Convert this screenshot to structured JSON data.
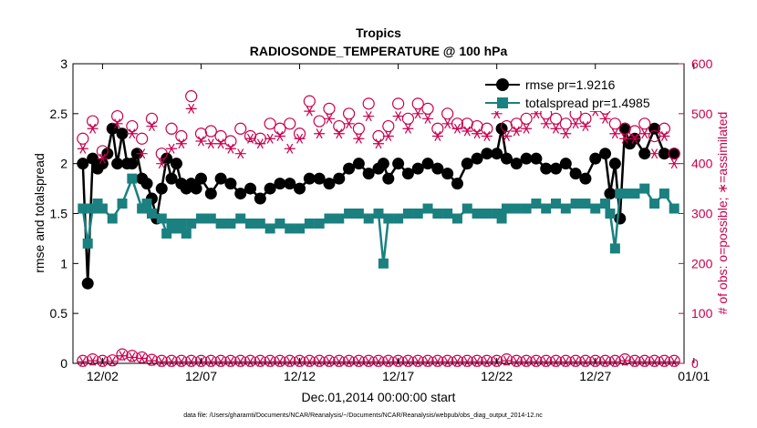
{
  "chart_data": {
    "type": "line",
    "title": "Tropics",
    "subtitle": "RADIOSONDE_TEMPERATURE @ 100 hPa",
    "xlabel": "Dec.01,2014 00:00:00 start",
    "ylabel": "rmse and totalspread",
    "y2label": "# of obs: o=possible; ∗=assimilated",
    "footnote": "data file: /Users/gharamti/Documents/NCAR/Reanalysis/~/Documents/NCAR/Reanalysis/webpub/obs_diag_output_2014-12.nc",
    "xlim": [
      0.5,
      31.5
    ],
    "ylim": [
      0,
      3
    ],
    "y2lim": [
      0,
      600
    ],
    "x_ticks": [
      {
        "value": 2,
        "label": "12/02"
      },
      {
        "value": 7,
        "label": "12/07"
      },
      {
        "value": 12,
        "label": "12/12"
      },
      {
        "value": 17,
        "label": "12/17"
      },
      {
        "value": 22,
        "label": "12/22"
      },
      {
        "value": 27,
        "label": "12/27"
      },
      {
        "value": 32,
        "label": "01/01"
      }
    ],
    "y_ticks": [
      {
        "value": 0,
        "label": "0"
      },
      {
        "value": 0.5,
        "label": "0.5"
      },
      {
        "value": 1,
        "label": "1"
      },
      {
        "value": 1.5,
        "label": "1.5"
      },
      {
        "value": 2,
        "label": "2"
      },
      {
        "value": 2.5,
        "label": "2.5"
      },
      {
        "value": 3,
        "label": "3"
      }
    ],
    "y2_ticks": [
      {
        "value": 0,
        "label": "0"
      },
      {
        "value": 100,
        "label": "100"
      },
      {
        "value": 200,
        "label": "200"
      },
      {
        "value": 300,
        "label": "300"
      },
      {
        "value": 400,
        "label": "400"
      },
      {
        "value": 500,
        "label": "500"
      },
      {
        "value": 600,
        "label": "600"
      }
    ],
    "legend_position": "top-right",
    "series": [
      {
        "name": "rmse",
        "legend_label": "rmse pr=1.9216",
        "color": "#000000",
        "marker": "circle",
        "axis": "left",
        "x": [
          1.0,
          1.25,
          1.5,
          1.75,
          2.0,
          2.25,
          2.5,
          2.75,
          3.0,
          3.25,
          3.5,
          3.75,
          4.0,
          4.25,
          4.5,
          4.75,
          5.0,
          5.25,
          5.5,
          5.75,
          6.0,
          6.25,
          6.5,
          6.75,
          7.0,
          7.5,
          8.0,
          8.5,
          9.0,
          9.5,
          10.0,
          10.5,
          11.0,
          11.5,
          12.0,
          12.5,
          13.0,
          13.5,
          14.0,
          14.5,
          15.0,
          15.5,
          16.0,
          16.25,
          16.5,
          17.0,
          17.5,
          18.0,
          18.5,
          19.0,
          19.5,
          20.0,
          20.5,
          21.0,
          21.5,
          22.0,
          22.25,
          22.5,
          23.0,
          23.5,
          24.0,
          24.5,
          25.0,
          25.5,
          26.0,
          26.5,
          27.0,
          27.5,
          27.75,
          28.0,
          28.25,
          28.5,
          28.75,
          29.0,
          29.5,
          30.0,
          30.5,
          31.0
        ],
        "y": [
          2.0,
          0.8,
          2.05,
          1.95,
          2.0,
          2.1,
          2.35,
          2.0,
          2.3,
          2.0,
          2.0,
          2.1,
          1.85,
          1.8,
          1.65,
          1.45,
          1.75,
          2.05,
          1.85,
          2.0,
          1.8,
          1.75,
          1.8,
          1.75,
          1.85,
          1.7,
          1.85,
          1.8,
          1.7,
          1.75,
          1.65,
          1.75,
          1.8,
          1.8,
          1.75,
          1.85,
          1.85,
          1.8,
          1.85,
          1.95,
          2.0,
          1.9,
          1.95,
          2.0,
          1.85,
          2.0,
          1.9,
          1.95,
          2.0,
          1.95,
          1.9,
          1.8,
          2.0,
          2.05,
          2.1,
          2.1,
          2.35,
          2.05,
          2.0,
          2.05,
          2.05,
          1.95,
          1.95,
          2.0,
          1.9,
          1.85,
          2.05,
          2.1,
          1.7,
          2.0,
          1.45,
          2.35,
          2.2,
          2.25,
          2.1,
          2.35,
          2.1,
          2.1
        ]
      },
      {
        "name": "totalspread",
        "legend_label": "totalspread pr=1.4985",
        "color": "#1a8080",
        "marker": "square",
        "axis": "left",
        "x": [
          1.0,
          1.25,
          1.5,
          1.75,
          2.0,
          2.5,
          3.0,
          3.5,
          4.0,
          4.25,
          4.5,
          5.0,
          5.25,
          5.5,
          5.75,
          6.0,
          6.25,
          6.5,
          7.0,
          7.5,
          8.0,
          8.5,
          9.0,
          9.5,
          10.0,
          10.5,
          11.0,
          11.5,
          12.0,
          12.5,
          13.0,
          13.5,
          14.0,
          14.5,
          15.0,
          15.5,
          16.0,
          16.25,
          16.5,
          17.0,
          17.5,
          18.0,
          18.5,
          19.0,
          19.5,
          20.0,
          20.5,
          21.0,
          21.5,
          22.0,
          22.25,
          22.5,
          23.0,
          23.5,
          24.0,
          24.5,
          25.0,
          25.5,
          26.0,
          26.5,
          27.0,
          27.5,
          27.75,
          28.0,
          28.25,
          28.5,
          29.0,
          29.5,
          30.0,
          30.5,
          31.0
        ],
        "y": [
          1.55,
          1.2,
          1.55,
          1.6,
          1.55,
          1.45,
          1.6,
          1.85,
          1.55,
          1.6,
          1.5,
          1.45,
          1.3,
          1.4,
          1.35,
          1.4,
          1.3,
          1.4,
          1.45,
          1.45,
          1.4,
          1.4,
          1.45,
          1.4,
          1.4,
          1.35,
          1.4,
          1.35,
          1.35,
          1.4,
          1.4,
          1.45,
          1.45,
          1.5,
          1.5,
          1.45,
          1.5,
          1.0,
          1.45,
          1.45,
          1.5,
          1.5,
          1.55,
          1.5,
          1.5,
          1.45,
          1.55,
          1.5,
          1.5,
          1.5,
          1.45,
          1.55,
          1.55,
          1.55,
          1.6,
          1.55,
          1.6,
          1.55,
          1.6,
          1.6,
          1.55,
          1.6,
          1.5,
          1.15,
          1.7,
          1.7,
          1.7,
          1.75,
          1.6,
          1.7,
          1.55
        ]
      },
      {
        "name": "obs possible (top)",
        "color": "#c8004f",
        "marker": "open-circle",
        "axis": "right",
        "x": [
          1.0,
          1.5,
          2.0,
          2.75,
          3.5,
          4.0,
          4.5,
          5.0,
          5.5,
          6.0,
          6.5,
          7.0,
          7.5,
          8.0,
          8.5,
          9.0,
          9.5,
          10.0,
          10.5,
          11.0,
          11.5,
          12.0,
          12.5,
          13.0,
          13.5,
          14.0,
          14.5,
          15.0,
          15.5,
          16.0,
          16.5,
          17.0,
          17.5,
          18.0,
          18.5,
          19.0,
          19.5,
          20.0,
          20.5,
          21.0,
          21.5,
          22.0,
          22.5,
          23.0,
          23.5,
          24.0,
          24.5,
          25.0,
          25.5,
          26.0,
          26.5,
          27.0,
          27.5,
          28.0,
          28.5,
          29.0,
          29.5,
          30.0,
          30.5,
          31.0
        ],
        "y": [
          450,
          485,
          425,
          495,
          475,
          450,
          490,
          420,
          470,
          455,
          535,
          460,
          465,
          455,
          445,
          470,
          455,
          450,
          480,
          470,
          480,
          460,
          525,
          485,
          510,
          475,
          500,
          470,
          520,
          455,
          475,
          520,
          490,
          520,
          510,
          470,
          500,
          480,
          480,
          475,
          470,
          520,
          475,
          480,
          490,
          520,
          500,
          490,
          480,
          500,
          490,
          525,
          510,
          480,
          470,
          465,
          480,
          455,
          470,
          420
        ]
      },
      {
        "name": "obs assimilated (top)",
        "color": "#c8004f",
        "marker": "star",
        "axis": "right",
        "x": [
          1.0,
          1.5,
          2.0,
          2.75,
          3.5,
          4.0,
          4.5,
          5.0,
          5.5,
          6.0,
          6.5,
          7.0,
          7.5,
          8.0,
          8.5,
          9.0,
          9.5,
          10.0,
          10.5,
          11.0,
          11.5,
          12.0,
          12.5,
          13.0,
          13.5,
          14.0,
          14.5,
          15.0,
          15.5,
          16.0,
          16.5,
          17.0,
          17.5,
          18.0,
          18.5,
          19.0,
          19.5,
          20.0,
          20.5,
          21.0,
          21.5,
          22.0,
          22.5,
          23.0,
          23.5,
          24.0,
          24.5,
          25.0,
          25.5,
          26.0,
          26.5,
          27.0,
          27.5,
          28.0,
          28.5,
          29.0,
          29.5,
          30.0,
          30.5,
          31.0
        ],
        "y": [
          430,
          470,
          410,
          480,
          460,
          420,
          475,
          400,
          430,
          440,
          510,
          445,
          440,
          440,
          430,
          420,
          450,
          440,
          450,
          455,
          430,
          450,
          505,
          460,
          490,
          460,
          480,
          450,
          495,
          440,
          455,
          495,
          470,
          500,
          490,
          455,
          480,
          470,
          465,
          460,
          455,
          500,
          455,
          465,
          470,
          500,
          480,
          470,
          460,
          480,
          475,
          505,
          490,
          460,
          450,
          450,
          460,
          420,
          455,
          400
        ]
      },
      {
        "name": "obs possible (bottom)",
        "color": "#c8004f",
        "marker": "open-circle",
        "axis": "right",
        "x": [
          1.0,
          1.5,
          2.0,
          2.5,
          3.0,
          3.5,
          4.0,
          4.5,
          5.0,
          5.5,
          6.0,
          6.5,
          7.0,
          7.5,
          8.0,
          8.5,
          9.0,
          9.5,
          10.0,
          10.5,
          11.0,
          11.5,
          12.0,
          12.5,
          13.0,
          13.5,
          14.0,
          14.5,
          15.0,
          15.5,
          16.0,
          16.5,
          17.0,
          17.5,
          18.0,
          18.5,
          19.0,
          19.5,
          20.0,
          20.5,
          21.0,
          21.5,
          22.0,
          22.5,
          23.0,
          23.5,
          24.0,
          24.5,
          25.0,
          25.5,
          26.0,
          26.5,
          27.0,
          27.5,
          28.0,
          28.5,
          29.0,
          29.5,
          30.0,
          30.5,
          31.0
        ],
        "y": [
          5,
          8,
          5,
          6,
          18,
          15,
          12,
          7,
          5,
          5,
          5,
          5,
          5,
          5,
          5,
          5,
          5,
          5,
          5,
          5,
          5,
          5,
          5,
          5,
          5,
          5,
          5,
          5,
          5,
          5,
          5,
          5,
          5,
          5,
          5,
          5,
          5,
          5,
          5,
          5,
          5,
          5,
          5,
          8,
          5,
          5,
          5,
          5,
          5,
          5,
          5,
          5,
          5,
          5,
          5,
          8,
          5,
          5,
          5,
          5,
          5
        ]
      },
      {
        "name": "obs assimilated (bottom)",
        "color": "#c8004f",
        "marker": "star",
        "axis": "right",
        "x": [
          1.0,
          1.5,
          2.0,
          2.5,
          3.0,
          3.5,
          4.0,
          4.5,
          5.0,
          5.5,
          6.0,
          6.5,
          7.0,
          7.5,
          8.0,
          8.5,
          9.0,
          9.5,
          10.0,
          10.5,
          11.0,
          11.5,
          12.0,
          12.5,
          13.0,
          13.5,
          14.0,
          14.5,
          15.0,
          15.5,
          16.0,
          16.5,
          17.0,
          17.5,
          18.0,
          18.5,
          19.0,
          19.5,
          20.0,
          20.5,
          21.0,
          21.5,
          22.0,
          22.5,
          23.0,
          23.5,
          24.0,
          24.5,
          25.0,
          25.5,
          26.0,
          26.5,
          27.0,
          27.5,
          28.0,
          28.5,
          29.0,
          29.5,
          30.0,
          30.5,
          31.0
        ],
        "y": [
          3,
          5,
          3,
          4,
          15,
          12,
          10,
          5,
          3,
          3,
          3,
          3,
          3,
          3,
          3,
          3,
          3,
          3,
          3,
          3,
          3,
          3,
          3,
          3,
          3,
          3,
          3,
          3,
          3,
          3,
          3,
          3,
          3,
          3,
          3,
          3,
          3,
          3,
          3,
          3,
          3,
          3,
          3,
          5,
          3,
          3,
          3,
          3,
          3,
          3,
          3,
          3,
          3,
          3,
          3,
          5,
          3,
          3,
          3,
          3,
          3
        ]
      }
    ]
  }
}
